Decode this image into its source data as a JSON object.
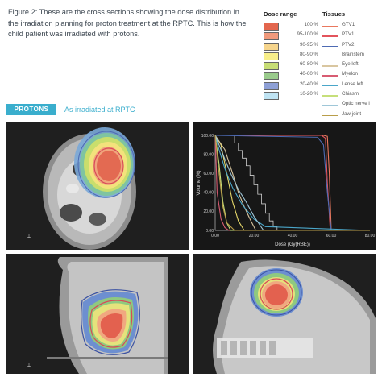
{
  "caption": "Figure 2: These are the cross sections showing the dose distribution in the irradiation planning for proton treatment at the RPTC. This is how the child patient was irradiated with protons.",
  "legend": {
    "dose_title": "Dose range",
    "tissue_title": "Tissues",
    "dose_ranges": [
      {
        "label": "100 %",
        "color": "#e3664e"
      },
      {
        "label": "95-100 %",
        "color": "#f09a7c"
      },
      {
        "label": "90-95 %",
        "color": "#f6d58d"
      },
      {
        "label": "80-90 %",
        "color": "#f7ee8a"
      },
      {
        "label": "60-80 %",
        "color": "#c7dd76"
      },
      {
        "label": "40-60 %",
        "color": "#9acb8c"
      },
      {
        "label": "20-40 %",
        "color": "#8ea0d6"
      },
      {
        "label": "10-20 %",
        "color": "#bfe3f2"
      }
    ],
    "tissues": [
      {
        "label": "GTV1",
        "color": "#e9785e"
      },
      {
        "label": "PTV1",
        "color": "#e3545c"
      },
      {
        "label": "PTV2",
        "color": "#4d6ab3"
      },
      {
        "label": "Brainstem",
        "color": "#e6d86a"
      },
      {
        "label": "Eye left",
        "color": "#d9c6a0"
      },
      {
        "label": "Myelon",
        "color": "#d85c72"
      },
      {
        "label": "Lense left",
        "color": "#4aa6c9"
      },
      {
        "label": "Chiasm",
        "color": "#c6df7a"
      },
      {
        "label": "Optic nerve l",
        "color": "#9fc7d8"
      },
      {
        "label": "Jaw joint",
        "color": "#b99e4a"
      }
    ]
  },
  "section": {
    "badge": "PROTONS",
    "subtitle": "As irradiated at RPTC"
  },
  "chart_data": {
    "type": "line",
    "title": "",
    "xlabel": "Dose (Gy(RBE))",
    "ylabel": "Volume (%)",
    "xlim": [
      0,
      80
    ],
    "ylim": [
      0,
      100
    ],
    "x_ticks": [
      "0.00",
      "20.00",
      "40.00",
      "60.00",
      "80.00"
    ],
    "y_ticks": [
      "0.00",
      "20.00",
      "40.00",
      "60.00",
      "80.00",
      "100.00"
    ],
    "grid": false,
    "series": [
      {
        "color": "#e9785e",
        "x": [
          0,
          56,
          58,
          59,
          60,
          80
        ],
        "y": [
          100,
          100,
          99,
          60,
          0,
          0
        ]
      },
      {
        "color": "#e3545c",
        "x": [
          0,
          55,
          57,
          58,
          59.5,
          80
        ],
        "y": [
          100,
          100,
          97,
          50,
          0,
          0
        ]
      },
      {
        "color": "#4d6ab3",
        "x": [
          0,
          53,
          56,
          58,
          60,
          80
        ],
        "y": [
          100,
          98,
          90,
          40,
          0,
          0
        ]
      },
      {
        "color": "#e6d86a",
        "x": [
          0,
          3,
          6,
          9,
          12,
          15,
          80
        ],
        "y": [
          100,
          90,
          60,
          30,
          10,
          0,
          0
        ]
      },
      {
        "color": "#d9c6a0",
        "x": [
          0,
          5,
          9,
          12,
          15,
          18,
          21,
          80
        ],
        "y": [
          100,
          85,
          60,
          40,
          25,
          12,
          0,
          0
        ]
      },
      {
        "color": "#d85c72",
        "x": [
          0,
          1,
          3,
          5,
          7,
          80
        ],
        "y": [
          100,
          40,
          12,
          3,
          0,
          0
        ]
      },
      {
        "color": "#4aa6c9",
        "x": [
          0,
          2,
          5,
          9,
          14,
          20,
          26,
          80
        ],
        "y": [
          100,
          85,
          65,
          45,
          27,
          12,
          4,
          0
        ]
      },
      {
        "color": "#c6df7a",
        "x": [
          0,
          2,
          4,
          6,
          8,
          80
        ],
        "y": [
          100,
          70,
          30,
          8,
          0,
          0
        ]
      },
      {
        "color": "#9fc7d8",
        "x": [
          0,
          4,
          8,
          12,
          16,
          20,
          25,
          80
        ],
        "y": [
          100,
          80,
          60,
          43,
          30,
          15,
          0,
          0
        ]
      },
      {
        "color": "#b99e4a",
        "x": [
          0,
          2,
          4,
          6,
          10,
          80
        ],
        "y": [
          100,
          60,
          25,
          8,
          0,
          0
        ]
      }
    ],
    "steps": [
      {
        "color": "#cfcfcf",
        "x": [
          8,
          10,
          12,
          14,
          16,
          18,
          20,
          22,
          24,
          26,
          28,
          30,
          32
        ],
        "y": [
          100,
          92,
          84,
          76,
          68,
          58,
          48,
          38,
          28,
          18,
          10,
          4,
          0
        ]
      }
    ]
  }
}
